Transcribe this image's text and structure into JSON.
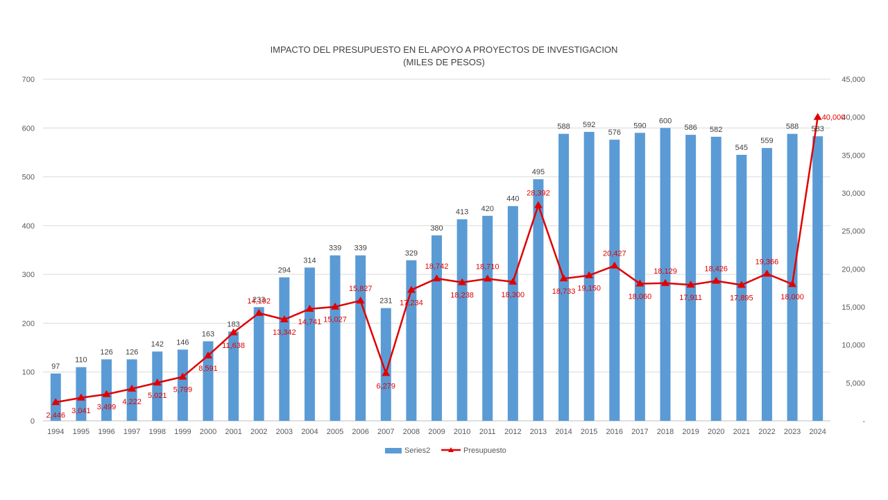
{
  "chart_data": {
    "type": "bar",
    "title": "IMPACTO DEL PRESUPUESTO EN EL APOYO A PROYECTOS DE INVESTIGACION",
    "subtitle": "(MILES DE PESOS)",
    "xlabel": "",
    "ylabel": "",
    "y2label": "",
    "ylim": [
      0,
      700
    ],
    "y2lim": [
      0,
      45000
    ],
    "yticks": [
      "0",
      "100",
      "200",
      "300",
      "400",
      "500",
      "600",
      "700"
    ],
    "y2ticks": [
      "-",
      "5,000",
      "10,000",
      "15,000",
      "20,000",
      "25,000",
      "30,000",
      "35,000",
      "40,000",
      "45,000"
    ],
    "grid": true,
    "legend_position": "bottom",
    "categories": [
      "1994",
      "1995",
      "1996",
      "1997",
      "1998",
      "1999",
      "2000",
      "2001",
      "2002",
      "2003",
      "2004",
      "2005",
      "2006",
      "2007",
      "2008",
      "2009",
      "2010",
      "2011",
      "2012",
      "2013",
      "2014",
      "2015",
      "2016",
      "2017",
      "2018",
      "2019",
      "2020",
      "2021",
      "2022",
      "2023",
      "2024"
    ],
    "series": [
      {
        "name": "Series2",
        "type": "bar",
        "axis": "left",
        "color": "#5b9bd5",
        "values": [
          97,
          110,
          126,
          126,
          142,
          146,
          163,
          183,
          233,
          294,
          314,
          339,
          339,
          231,
          329,
          380,
          413,
          420,
          440,
          495,
          588,
          592,
          576,
          590,
          600,
          586,
          582,
          545,
          559,
          588,
          583
        ],
        "labels": [
          "97",
          "110",
          "126",
          "126",
          "142",
          "146",
          "163",
          "183",
          "233",
          "294",
          "314",
          "339",
          "339",
          "231",
          "329",
          "380",
          "413",
          "420",
          "440",
          "495",
          "588",
          "592",
          "576",
          "590",
          "600",
          "586",
          "582",
          "545",
          "559",
          "588",
          "583"
        ]
      },
      {
        "name": "Presupuesto",
        "type": "line",
        "axis": "right",
        "color": "#e00000",
        "marker": "triangle",
        "values": [
          2446,
          3041,
          3499,
          4222,
          5021,
          5799,
          8591,
          11638,
          14192,
          13342,
          14741,
          15027,
          15827,
          6279,
          17234,
          18742,
          18238,
          18710,
          18300,
          28392,
          18733,
          19150,
          20427,
          18060,
          18129,
          17911,
          18426,
          17895,
          19366,
          18000,
          40000
        ],
        "labels": [
          "2,446",
          "3,041",
          "3,499",
          "4,222",
          "5,021",
          "5,799",
          "8,591",
          "11,638",
          "14,192",
          "13,342",
          "14,741",
          "15,027",
          "15,827",
          "6,279",
          "17,234",
          "18,742",
          "18,238",
          "18,710",
          "18,300",
          "28,392",
          "18,733",
          "19,150",
          "20,427",
          "18,060",
          "18,129",
          "17,911",
          "18,426",
          "17,895",
          "19,366",
          "18,000",
          "40,000"
        ]
      }
    ]
  }
}
